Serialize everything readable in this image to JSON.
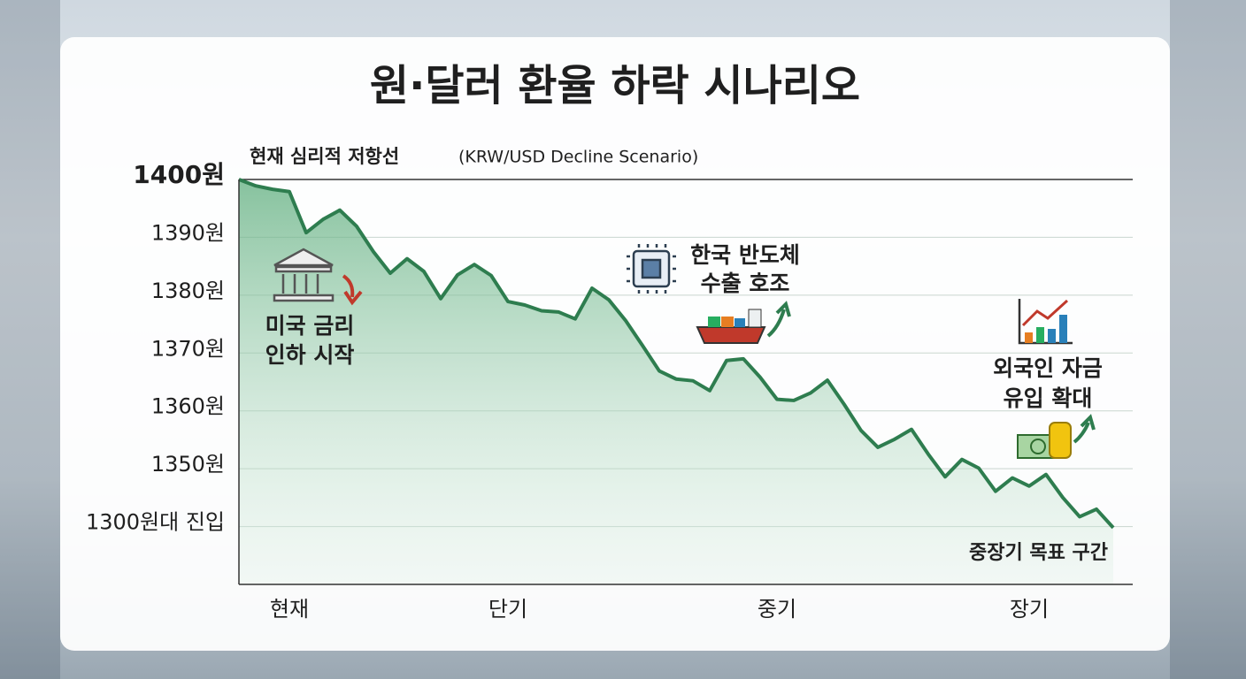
{
  "chart_data": {
    "type": "line",
    "title": "원·달러 환율 하락 시나리오",
    "subtitle": "(KRW/USD Decline Scenario)",
    "annotations": [
      {
        "lines": [
          "현재 심리적 저항선"
        ]
      },
      {
        "lines": [
          "미국 금리",
          "인하 시작"
        ]
      },
      {
        "lines": [
          "한국 반도체",
          "수출 호조"
        ]
      },
      {
        "lines": [
          "외국인 자금",
          "유입 확대"
        ]
      },
      {
        "lines": [
          "중장기 목표 구간"
        ]
      }
    ],
    "categories": [
      null,
      null,
      null,
      "현재",
      null,
      null,
      null,
      null,
      null,
      null,
      null,
      null,
      null,
      null,
      null,
      null,
      "단기",
      null,
      null,
      null,
      null,
      null,
      null,
      null,
      null,
      null,
      null,
      null,
      null,
      null,
      null,
      null,
      "중기",
      null,
      null,
      null,
      null,
      null,
      null,
      null,
      null,
      null,
      null,
      null,
      null,
      null,
      null,
      "장기",
      null,
      null,
      null,
      null,
      null
    ],
    "series": [
      {
        "color": "#2e7d4f",
        "values": [
          1400,
          1398.9,
          1398.3,
          1397.9,
          1390.8,
          1393.1,
          1394.7,
          1391.9,
          1387.5,
          1383.8,
          1386.3,
          1384.1,
          1379.4,
          1383.5,
          1385.3,
          1383.4,
          1378.9,
          1378.3,
          1377.3,
          1377.1,
          1375.9,
          1381.2,
          1379.2,
          1375.6,
          1371.3,
          1366.9,
          1365.5,
          1365.2,
          1363.5,
          1368.7,
          1369,
          1365.8,
          1362,
          1361.8,
          1363.1,
          1365.3,
          1361.1,
          1356.6,
          1353.7,
          1355.1,
          1356.8,
          1352.5,
          1348.6,
          1351.6,
          1350.1,
          1346.1,
          1348.4,
          1347,
          1349,
          1345,
          1341.7,
          1343,
          1339.8
        ]
      }
    ],
    "ylim": [
      1330,
      1400
    ],
    "yticks": [
      {
        "value": 1400,
        "label": "1400원"
      },
      {
        "value": 1390,
        "label": "1390원"
      },
      {
        "value": 1380,
        "label": "1380원"
      },
      {
        "value": 1370,
        "label": "1370원"
      },
      {
        "value": 1360,
        "label": "1360원"
      },
      {
        "value": 1350,
        "label": "1350원"
      },
      {
        "value": 1340,
        "label": "1300원대 진입"
      }
    ],
    "grid": true
  }
}
